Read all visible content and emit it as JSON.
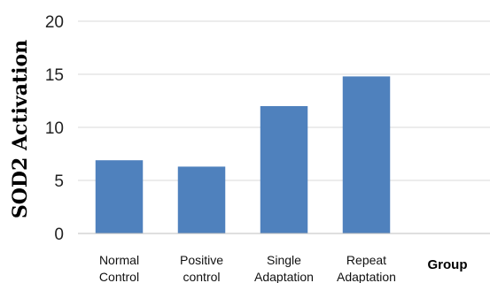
{
  "chart_data": {
    "type": "bar",
    "categories": [
      [
        "Normal",
        "Control"
      ],
      [
        "Positive",
        "control"
      ],
      [
        "Single",
        "Adaptation"
      ],
      [
        "Repeat",
        "Adaptation"
      ],
      [
        ""
      ]
    ],
    "values": [
      6.9,
      6.3,
      12.0,
      14.8,
      null
    ],
    "xlabel": "Group",
    "ylabel": "SOD2 Activation",
    "ylim": [
      0,
      20
    ],
    "yticks": [
      0,
      5,
      10,
      15,
      20
    ],
    "grid": true,
    "bar_color": "#4f81bd"
  }
}
